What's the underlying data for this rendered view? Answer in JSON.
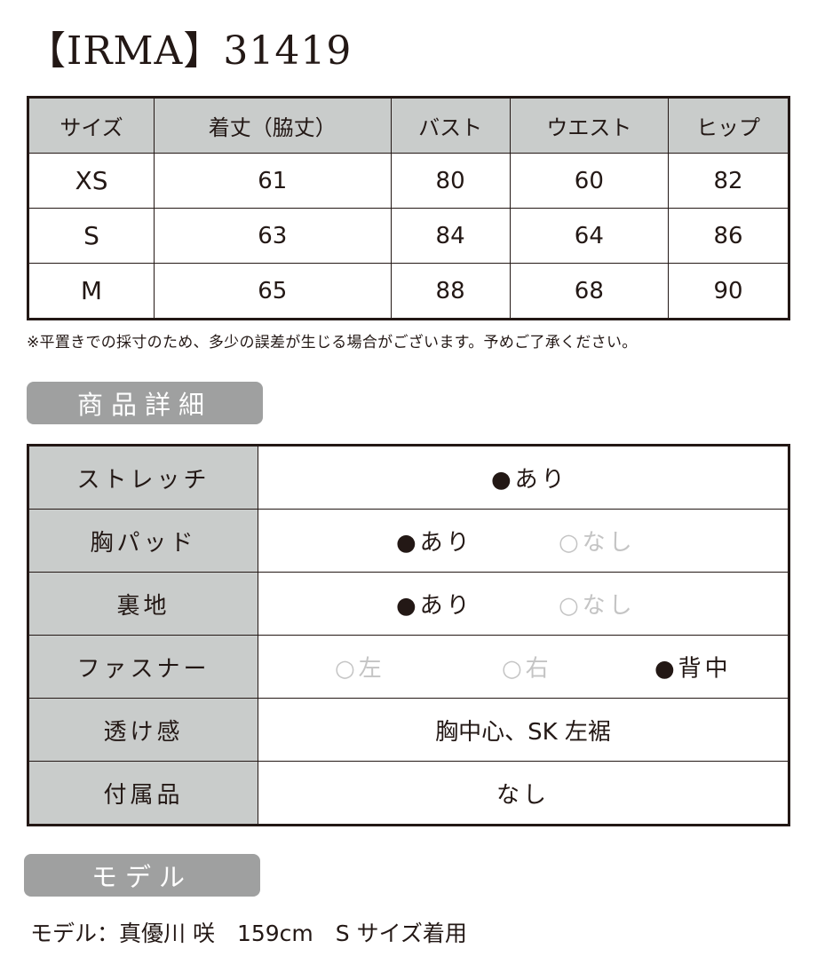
{
  "title": "【IRMA】31419",
  "size_table": {
    "headers": [
      "サイズ",
      "着丈（脇丈）",
      "バスト",
      "ウエスト",
      "ヒップ"
    ],
    "rows": [
      [
        "XS",
        "61",
        "80",
        "60",
        "82"
      ],
      [
        "S",
        "63",
        "84",
        "64",
        "86"
      ],
      [
        "M",
        "65",
        "88",
        "68",
        "90"
      ]
    ]
  },
  "note": "※平置きでの採寸のため、多少の誤差が生じる場合がございます。予めご了承ください。",
  "details_heading": "商品詳細",
  "details": [
    {
      "label": "ストレッチ",
      "options": [
        {
          "text": "●あり",
          "selected": true
        }
      ]
    },
    {
      "label": "胸パッド",
      "options": [
        {
          "text": "●あり",
          "selected": true
        },
        {
          "text": "○なし",
          "selected": false
        }
      ]
    },
    {
      "label": "裏地",
      "options": [
        {
          "text": "●あり",
          "selected": true
        },
        {
          "text": "○なし",
          "selected": false
        }
      ]
    },
    {
      "label": "ファスナー",
      "options": [
        {
          "text": "○左",
          "selected": false
        },
        {
          "text": "○右",
          "selected": false
        },
        {
          "text": "●背中",
          "selected": true
        }
      ]
    },
    {
      "label": "透け感",
      "value": "胸中心、SK 左裾"
    },
    {
      "label": "付属品",
      "value": "なし"
    }
  ],
  "model_heading": "モデル",
  "model_info": "モデル：真優川 咲　159cm　S サイズ着用",
  "colors": {
    "header_bg": "#c9cccb",
    "pill_bg": "#9fa0a0",
    "inactive": "#c4c4c4",
    "text": "#231815"
  }
}
